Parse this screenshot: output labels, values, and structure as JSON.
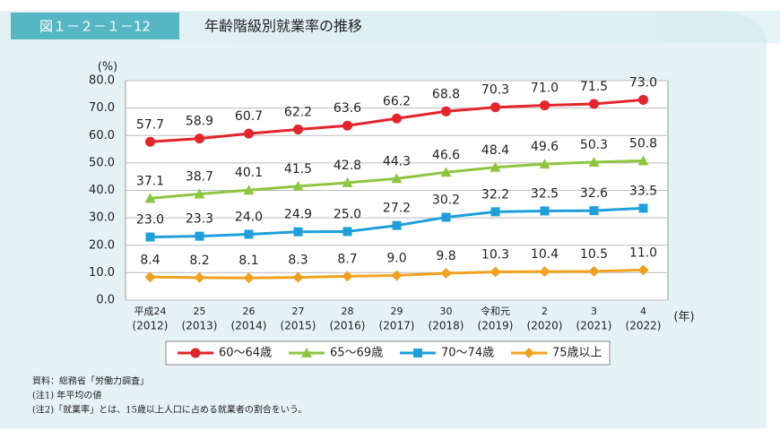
{
  "chart_data": {
    "type": "line",
    "figure_label": "図１－２－１－12",
    "title": "年齢階級別就業率の推移",
    "y_unit": "(%)",
    "x_unit": "(年)",
    "categories": [
      [
        "平成24",
        "(2012)"
      ],
      [
        "25",
        "(2013)"
      ],
      [
        "26",
        "(2014)"
      ],
      [
        "27",
        "(2015)"
      ],
      [
        "28",
        "(2016)"
      ],
      [
        "29",
        "(2017)"
      ],
      [
        "30",
        "(2018)"
      ],
      [
        "令和元",
        "(2019)"
      ],
      [
        "2",
        "(2020)"
      ],
      [
        "3",
        "(2021)"
      ],
      [
        "4",
        "(2022)"
      ]
    ],
    "ylim": [
      0,
      80
    ],
    "yticks": [
      {
        "value": 0,
        "label": "0.0"
      },
      {
        "value": 10,
        "label": "10.0"
      },
      {
        "value": 20,
        "label": "20.0"
      },
      {
        "value": 30,
        "label": "30.0"
      },
      {
        "value": 40,
        "label": "40.0"
      },
      {
        "value": 50,
        "label": "50.0"
      },
      {
        "value": 60,
        "label": "60.0"
      },
      {
        "value": 70,
        "label": "70.0"
      },
      {
        "value": 80,
        "label": "80.0"
      }
    ],
    "grid": true,
    "series": [
      {
        "name": "60～64歳",
        "color": "#e3242b",
        "marker": "circle",
        "values": [
          57.7,
          58.9,
          60.7,
          62.2,
          63.6,
          66.2,
          68.8,
          70.3,
          71.0,
          71.5,
          73.0
        ],
        "value_labels": [
          "57.7",
          "58.9",
          "60.7",
          "62.2",
          "63.6",
          "66.2",
          "68.8",
          "70.3",
          "71.0",
          "71.5",
          "73.0"
        ]
      },
      {
        "name": "65～69歳",
        "color": "#8dc63f",
        "marker": "triangle",
        "values": [
          37.1,
          38.7,
          40.1,
          41.5,
          42.8,
          44.3,
          46.6,
          48.4,
          49.6,
          50.3,
          50.8
        ],
        "value_labels": [
          "37.1",
          "38.7",
          "40.1",
          "41.5",
          "42.8",
          "44.3",
          "46.6",
          "48.4",
          "49.6",
          "50.3",
          "50.8"
        ]
      },
      {
        "name": "70～74歳",
        "color": "#1e9fdc",
        "marker": "square",
        "values": [
          23.0,
          23.3,
          24.0,
          24.9,
          25.0,
          27.2,
          30.2,
          32.2,
          32.5,
          32.6,
          33.5
        ],
        "value_labels": [
          "23.0",
          "23.3",
          "24.0",
          "24.9",
          "25.0",
          "27.2",
          "30.2",
          "32.2",
          "32.5",
          "32.6",
          "33.5"
        ]
      },
      {
        "name": "75歳以上",
        "color": "#f0a21e",
        "marker": "diamond",
        "values": [
          8.4,
          8.2,
          8.1,
          8.3,
          8.7,
          9.0,
          9.8,
          10.3,
          10.4,
          10.5,
          11.0
        ],
        "value_labels": [
          "8.4",
          "8.2",
          "8.1",
          "8.3",
          "8.7",
          "9.0",
          "9.8",
          "10.3",
          "10.4",
          "10.5",
          "11.0"
        ]
      }
    ],
    "notes": [
      "資料：総務省「労働力調査」",
      "(注1) 年平均の値",
      "(注2)「就業率」とは、15歳以上人口に占める就業者の割合をいう。"
    ]
  }
}
